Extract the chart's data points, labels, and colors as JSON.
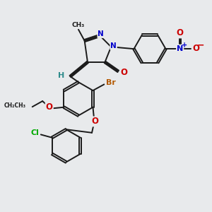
{
  "background_color": "#e8eaec",
  "bond_color": "#1a1a1a",
  "bond_width": 1.4,
  "dbo": 0.055,
  "colors": {
    "C": "#1a1a1a",
    "N": "#0000cc",
    "O": "#cc0000",
    "Br": "#b35900",
    "Cl": "#00aa00",
    "H": "#2e8b8b"
  },
  "xlim": [
    0,
    10
  ],
  "ylim": [
    0,
    10
  ]
}
